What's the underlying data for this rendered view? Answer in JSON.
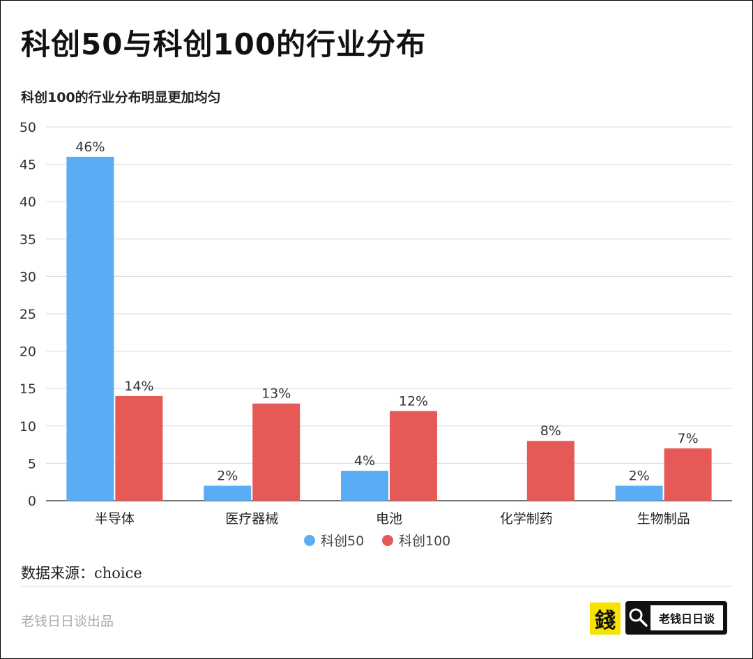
{
  "header": {
    "title": "科创50与科创100的行业分布",
    "subtitle": "科创100的行业分布明显更加均匀"
  },
  "chart_data": {
    "type": "bar",
    "categories": [
      "半导体",
      "医疗器械",
      "电池",
      "化学制药",
      "生物制品"
    ],
    "series": [
      {
        "name": "科创50",
        "values": [
          46,
          2,
          4,
          null,
          2
        ],
        "labels": [
          "46%",
          "2%",
          "4%",
          "",
          "2%"
        ],
        "color": "#5aadf5"
      },
      {
        "name": "科创100",
        "values": [
          14,
          13,
          12,
          8,
          7
        ],
        "labels": [
          "14%",
          "13%",
          "12%",
          "8%",
          "7%"
        ],
        "color": "#e55a57"
      }
    ],
    "ylim": [
      0,
      50
    ],
    "yticks": [
      0,
      5,
      10,
      15,
      20,
      25,
      30,
      35,
      40,
      45,
      50
    ],
    "grid": true,
    "legend": "bottom-center"
  },
  "footer": {
    "source": "数据来源：choice",
    "credit": "老钱日日谈出品",
    "logo_char": "錢",
    "brand_label": "老钱日日谈",
    "logo_color": "#f6e200"
  },
  "icons": {
    "brand_icon": "search-icon"
  }
}
